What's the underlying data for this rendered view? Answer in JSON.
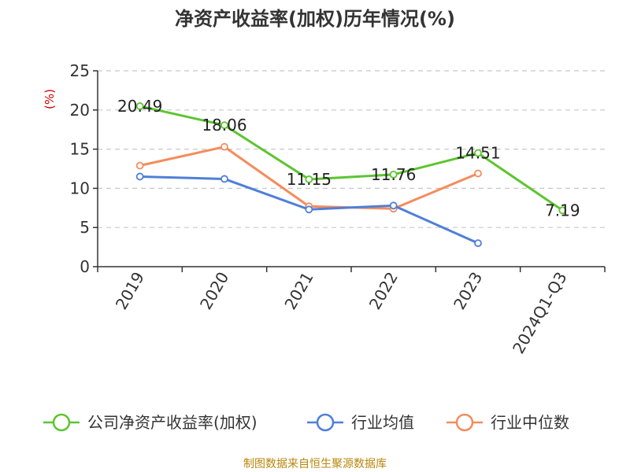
{
  "chart_data": {
    "type": "line",
    "title": "净资产收益率(加权)历年情况(%)",
    "ylabel": "(%)",
    "xlabel": "",
    "categories": [
      "2019",
      "2020",
      "2021",
      "2022",
      "2023",
      "2024Q1-Q3"
    ],
    "ylim": [
      0,
      25
    ],
    "yticks": [
      0,
      5,
      10,
      15,
      20,
      25
    ],
    "grid": true,
    "legend_position": "bottom",
    "series": [
      {
        "name": "公司净资产收益率(加权)",
        "color": "#5cc531",
        "values": [
          20.49,
          18.06,
          11.15,
          11.76,
          14.51,
          7.19
        ],
        "labels": [
          "20.49",
          "18.06",
          "11.15",
          "11.76",
          "14.51",
          "7.19"
        ]
      },
      {
        "name": "行业均值",
        "color": "#4f7fd8",
        "values": [
          11.5,
          11.2,
          7.3,
          7.8,
          3.0,
          null
        ]
      },
      {
        "name": "行业中位数",
        "color": "#f58c5c",
        "values": [
          12.9,
          15.3,
          7.7,
          7.4,
          11.9,
          null
        ]
      }
    ]
  },
  "source": "制图数据来自恒生聚源数据库"
}
